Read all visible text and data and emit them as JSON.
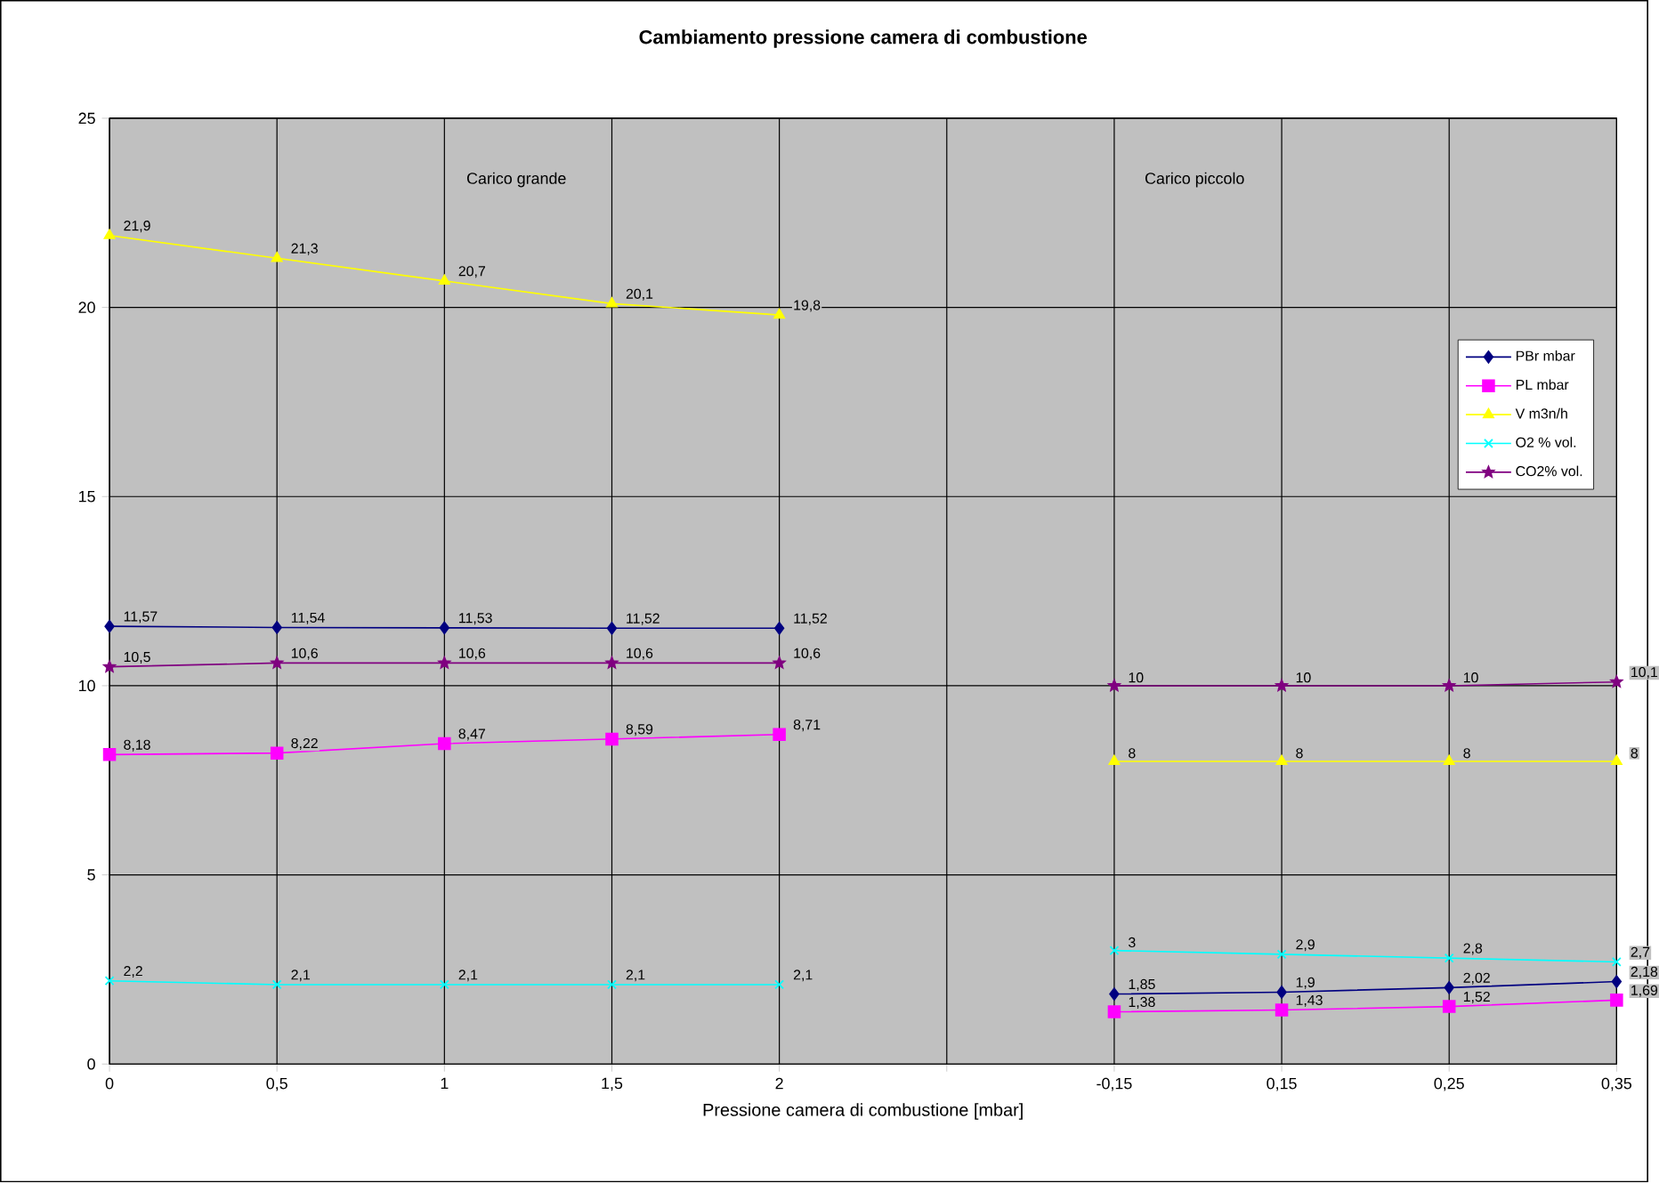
{
  "chart_data": {
    "type": "line",
    "title": "Cambiamento pressione camera di combustione",
    "xlabel": "Pressione camera di combustione [mbar]",
    "categories": [
      "0",
      "0,5",
      "1",
      "1,5",
      "2",
      null,
      "-0,15",
      "0,15",
      "0,25",
      "0,35"
    ],
    "ylim": [
      0,
      25
    ],
    "yticks": [
      0,
      5,
      10,
      15,
      20,
      25
    ],
    "grid": true,
    "legend": "right",
    "line_style": "solid",
    "annotations": [
      "Carico grande",
      "Carico piccolo"
    ],
    "series": [
      {
        "name": "PBr mbar",
        "color": "#000080",
        "marker": "diamond",
        "values": [
          11.57,
          11.54,
          11.53,
          11.52,
          11.52,
          null,
          1.85,
          1.9,
          2.02,
          2.18
        ],
        "value_labels": [
          "11,57",
          "11,54",
          "11,53",
          "11,52",
          "11,52",
          null,
          "1,85",
          "1,9",
          "2,02",
          "2,18"
        ]
      },
      {
        "name": "PL mbar",
        "color": "#ff00ff",
        "marker": "square",
        "values": [
          8.18,
          8.22,
          8.47,
          8.59,
          8.71,
          null,
          1.38,
          1.43,
          1.52,
          1.69
        ],
        "value_labels": [
          "8,18",
          "8,22",
          "8,47",
          "8,59",
          "8,71",
          null,
          "1,38",
          "1,43",
          "1,52",
          "1,69"
        ]
      },
      {
        "name": "V m3n/h",
        "color": "#ffff00",
        "marker": "triangle",
        "values": [
          21.9,
          21.3,
          20.7,
          20.1,
          19.8,
          null,
          8,
          8,
          8,
          8
        ],
        "value_labels": [
          "21,9",
          "21,3",
          "20,7",
          "20,1",
          "19,8",
          null,
          "8",
          "8",
          "8",
          "8"
        ]
      },
      {
        "name": "O2 % vol.",
        "color": "#00ffff",
        "marker": "cross",
        "values": [
          2.2,
          2.1,
          2.1,
          2.1,
          2.1,
          null,
          3,
          2.9,
          2.8,
          2.7
        ],
        "value_labels": [
          "2,2",
          "2,1",
          "2,1",
          "2,1",
          "2,1",
          null,
          "3",
          "2,9",
          "2,8",
          "2,7"
        ]
      },
      {
        "name": "CO2% vol.",
        "color": "#800080",
        "marker": "star",
        "values": [
          10.5,
          10.6,
          10.6,
          10.6,
          10.6,
          null,
          10,
          10,
          10,
          10.1
        ],
        "value_labels": [
          "10,5",
          "10,6",
          "10,6",
          "10,6",
          "10,6",
          null,
          "10",
          "10",
          "10",
          "10,1"
        ]
      }
    ]
  }
}
